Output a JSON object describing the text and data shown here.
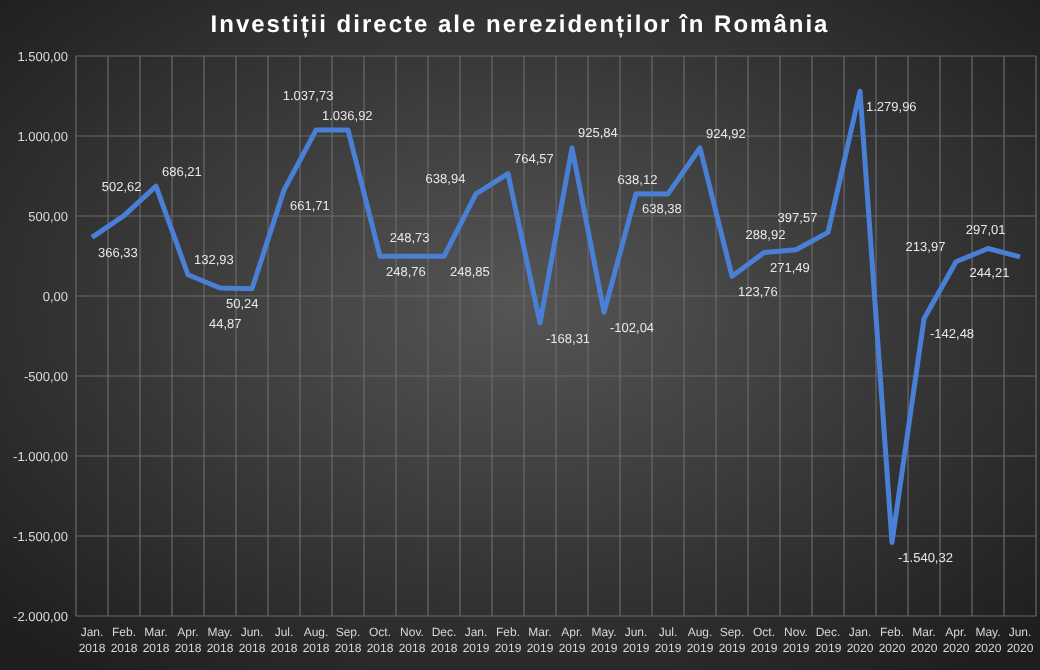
{
  "chart_data": {
    "type": "line",
    "title": "Investiții directe ale nerezidenților în România",
    "categories": [
      "Jan. 2018",
      "Feb. 2018",
      "Mar. 2018",
      "Apr. 2018",
      "May. 2018",
      "Jun. 2018",
      "Jul. 2018",
      "Aug. 2018",
      "Sep. 2018",
      "Oct. 2018",
      "Nov. 2018",
      "Dec. 2018",
      "Jan. 2019",
      "Feb. 2019",
      "Mar. 2019",
      "Apr. 2019",
      "May. 2019",
      "Jun. 2019",
      "Jul. 2019",
      "Aug. 2019",
      "Sep. 2019",
      "Oct. 2019",
      "Nov. 2019",
      "Dec. 2019",
      "Jan. 2020",
      "Feb. 2020",
      "Mar. 2020",
      "Apr. 2020",
      "May. 2020",
      "Jun. 2020"
    ],
    "series": [
      {
        "color": "#4a7fd6",
        "values": [
          366.33,
          502.62,
          686.21,
          132.93,
          50.24,
          44.87,
          661.71,
          1036.92,
          1037.73,
          248.76,
          248.73,
          248.85,
          638.94,
          764.57,
          -168.31,
          925.84,
          -102.04,
          638.38,
          638.12,
          924.92,
          123.76,
          271.49,
          288.92,
          397.57,
          1279.96,
          -1540.32,
          -142.48,
          213.97,
          297.01,
          244.21
        ],
        "value_labels": [
          "366,33",
          "502,62",
          "686,21",
          "132,93",
          "50,24",
          "44,87",
          "661,71",
          "1.036,92",
          "1.037,73",
          "248,76",
          "248,73",
          "248,85",
          "638,94",
          "764,57",
          "-168,31",
          "925,84",
          "-102,04",
          "638,38",
          "638,12",
          "924,92",
          "123,76",
          "271,49",
          "288,92",
          "397,57",
          "1.279,96",
          "-1.540,32",
          "-142,48",
          "213,97",
          "297,01",
          "244,21"
        ]
      }
    ],
    "ylim": [
      -2000,
      1500
    ],
    "yticks": [
      {
        "value": -2000,
        "label": "-2.000,00"
      },
      {
        "value": -1500,
        "label": "-1.500,00"
      },
      {
        "value": -1000,
        "label": "-1.000,00"
      },
      {
        "value": -500,
        "label": "-500,00"
      },
      {
        "value": 0,
        "label": "0,00"
      },
      {
        "value": 500,
        "label": "500,00"
      },
      {
        "value": 1000,
        "label": "1.000,00"
      },
      {
        "value": 1500,
        "label": "1.500,00"
      }
    ],
    "grid": true,
    "marker": "none",
    "line_style": "solid"
  }
}
